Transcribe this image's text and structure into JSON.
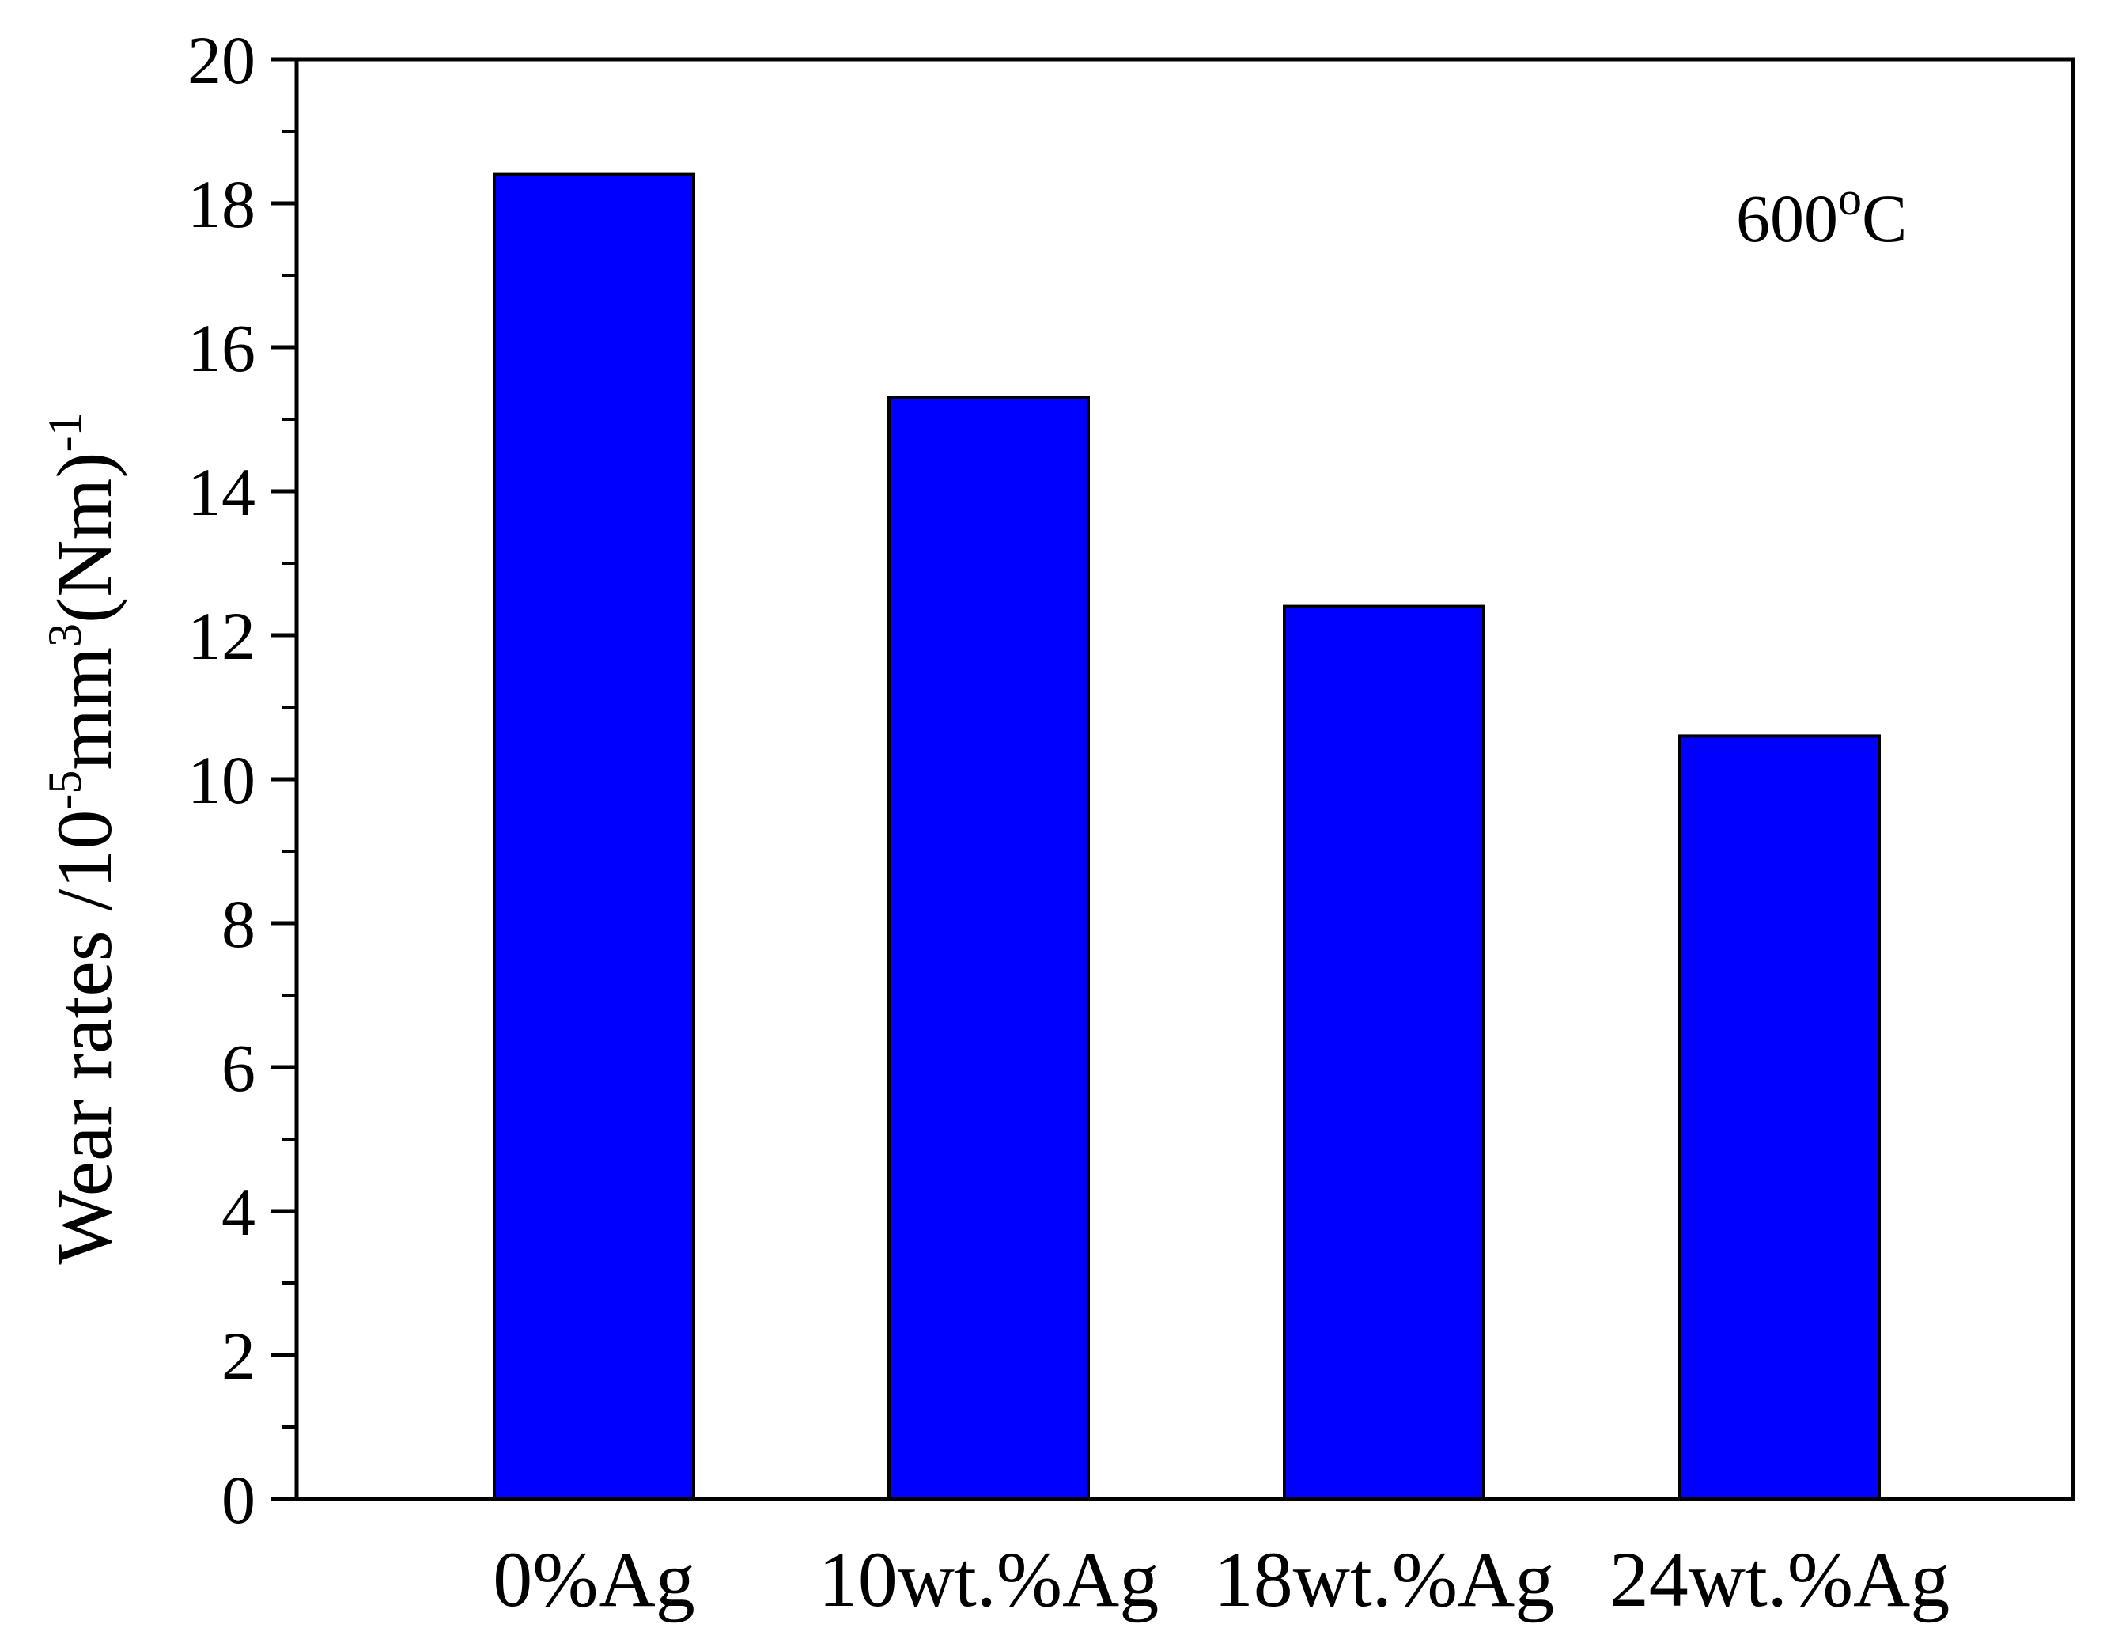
{
  "chart_data": {
    "type": "bar",
    "categories": [
      "0%Ag",
      "10wt.%Ag",
      "18wt.%Ag",
      "24wt.%Ag"
    ],
    "values": [
      18.4,
      15.3,
      12.4,
      10.6
    ],
    "ylim": [
      0,
      20
    ],
    "yticks": [
      0,
      2,
      4,
      6,
      8,
      10,
      12,
      14,
      16,
      18,
      20
    ],
    "ylabel": {
      "prefix": "Wear rates /10",
      "exp1": "-5",
      "mid": "mm",
      "exp2": "3",
      "mid2": "(Nm)",
      "exp3": "-1"
    },
    "annotation": {
      "base": "600",
      "sup": "o",
      "unit": "C"
    },
    "bar_color": "#0000ff",
    "grid": false
  }
}
